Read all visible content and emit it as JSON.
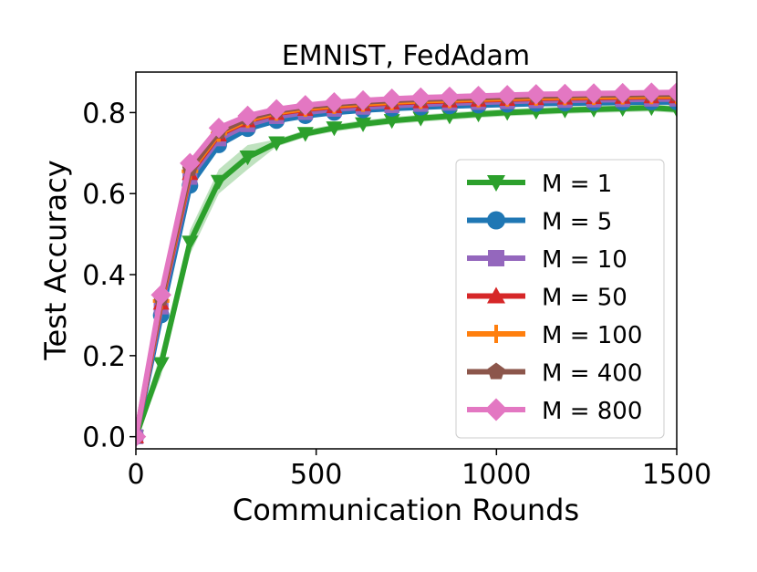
{
  "chart_data": {
    "type": "line",
    "title": "EMNIST, FedAdam",
    "xlabel": "Communication Rounds",
    "ylabel": "Test Accuracy",
    "xlim": [
      0,
      1500
    ],
    "ylim": [
      -0.03,
      0.9
    ],
    "xticks": [
      0,
      500,
      1000,
      1500
    ],
    "xtick_labels": [
      "0",
      "500",
      "1000",
      "1500"
    ],
    "yticks": [
      0.0,
      0.2,
      0.4,
      0.6,
      0.8
    ],
    "ytick_labels": [
      "0.0",
      "0.2",
      "0.4",
      "0.6",
      "0.8"
    ],
    "grid": false,
    "legend": "center-right",
    "x": [
      0,
      70,
      150,
      230,
      310,
      390,
      470,
      550,
      630,
      710,
      790,
      870,
      950,
      1030,
      1110,
      1190,
      1270,
      1350,
      1430,
      1500
    ],
    "series": [
      {
        "name": "M = 1",
        "color": "#2ca02c",
        "marker": "triangle-down",
        "values": [
          0.0,
          0.18,
          0.48,
          0.63,
          0.69,
          0.725,
          0.748,
          0.762,
          0.772,
          0.78,
          0.786,
          0.791,
          0.796,
          0.8,
          0.803,
          0.806,
          0.808,
          0.81,
          0.812,
          0.808
        ],
        "band": 0.03
      },
      {
        "name": "M = 5",
        "color": "#1f77b4",
        "marker": "circle",
        "values": [
          0.0,
          0.3,
          0.62,
          0.72,
          0.76,
          0.78,
          0.792,
          0.8,
          0.806,
          0.81,
          0.813,
          0.816,
          0.818,
          0.82,
          0.822,
          0.823,
          0.824,
          0.825,
          0.826,
          0.826
        ],
        "band": 0
      },
      {
        "name": "M = 10",
        "color": "#9467bd",
        "marker": "square",
        "values": [
          0.0,
          0.32,
          0.64,
          0.735,
          0.77,
          0.79,
          0.8,
          0.808,
          0.813,
          0.817,
          0.82,
          0.823,
          0.825,
          0.827,
          0.829,
          0.83,
          0.831,
          0.832,
          0.833,
          0.833
        ],
        "band": 0
      },
      {
        "name": "M = 50",
        "color": "#d62728",
        "marker": "triangle-up",
        "values": [
          0.0,
          0.33,
          0.65,
          0.745,
          0.78,
          0.798,
          0.808,
          0.815,
          0.82,
          0.824,
          0.827,
          0.829,
          0.831,
          0.833,
          0.835,
          0.836,
          0.837,
          0.838,
          0.839,
          0.839
        ],
        "band": 0
      },
      {
        "name": "M = 100",
        "color": "#ff7f0e",
        "marker": "plus",
        "values": [
          0.0,
          0.335,
          0.655,
          0.748,
          0.782,
          0.8,
          0.81,
          0.817,
          0.822,
          0.826,
          0.829,
          0.831,
          0.833,
          0.835,
          0.837,
          0.838,
          0.839,
          0.84,
          0.841,
          0.841
        ],
        "band": 0
      },
      {
        "name": "M = 400",
        "color": "#8c564b",
        "marker": "pentagon",
        "values": [
          0.0,
          0.34,
          0.66,
          0.752,
          0.786,
          0.804,
          0.814,
          0.821,
          0.826,
          0.83,
          0.833,
          0.835,
          0.837,
          0.839,
          0.841,
          0.842,
          0.843,
          0.844,
          0.845,
          0.845
        ],
        "band": 0
      },
      {
        "name": "M = 800",
        "color": "#e377c2",
        "marker": "diamond",
        "values": [
          0.0,
          0.35,
          0.675,
          0.762,
          0.792,
          0.808,
          0.818,
          0.825,
          0.83,
          0.834,
          0.837,
          0.839,
          0.841,
          0.843,
          0.845,
          0.846,
          0.847,
          0.848,
          0.849,
          0.85
        ],
        "band": 0
      }
    ]
  }
}
